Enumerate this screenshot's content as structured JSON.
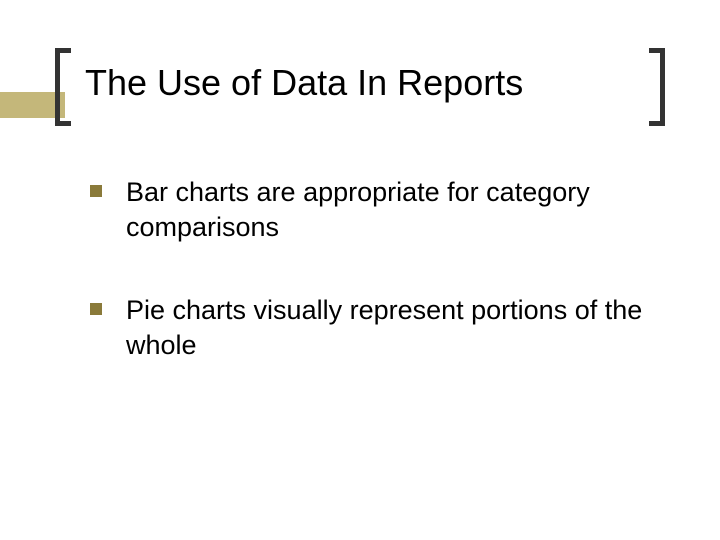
{
  "slide": {
    "title": "The Use of Data In Reports",
    "accent_bar_color": "#c4b77a",
    "bracket_color": "#333333",
    "title_fontsize": 36,
    "bullets": [
      {
        "text": "Bar charts are appropriate for category comparisons"
      },
      {
        "text": "Pie charts visually represent portions of the whole"
      }
    ],
    "bullet_square_color": "#8a7a3a",
    "bullet_fontsize": 27,
    "background_color": "#ffffff"
  }
}
